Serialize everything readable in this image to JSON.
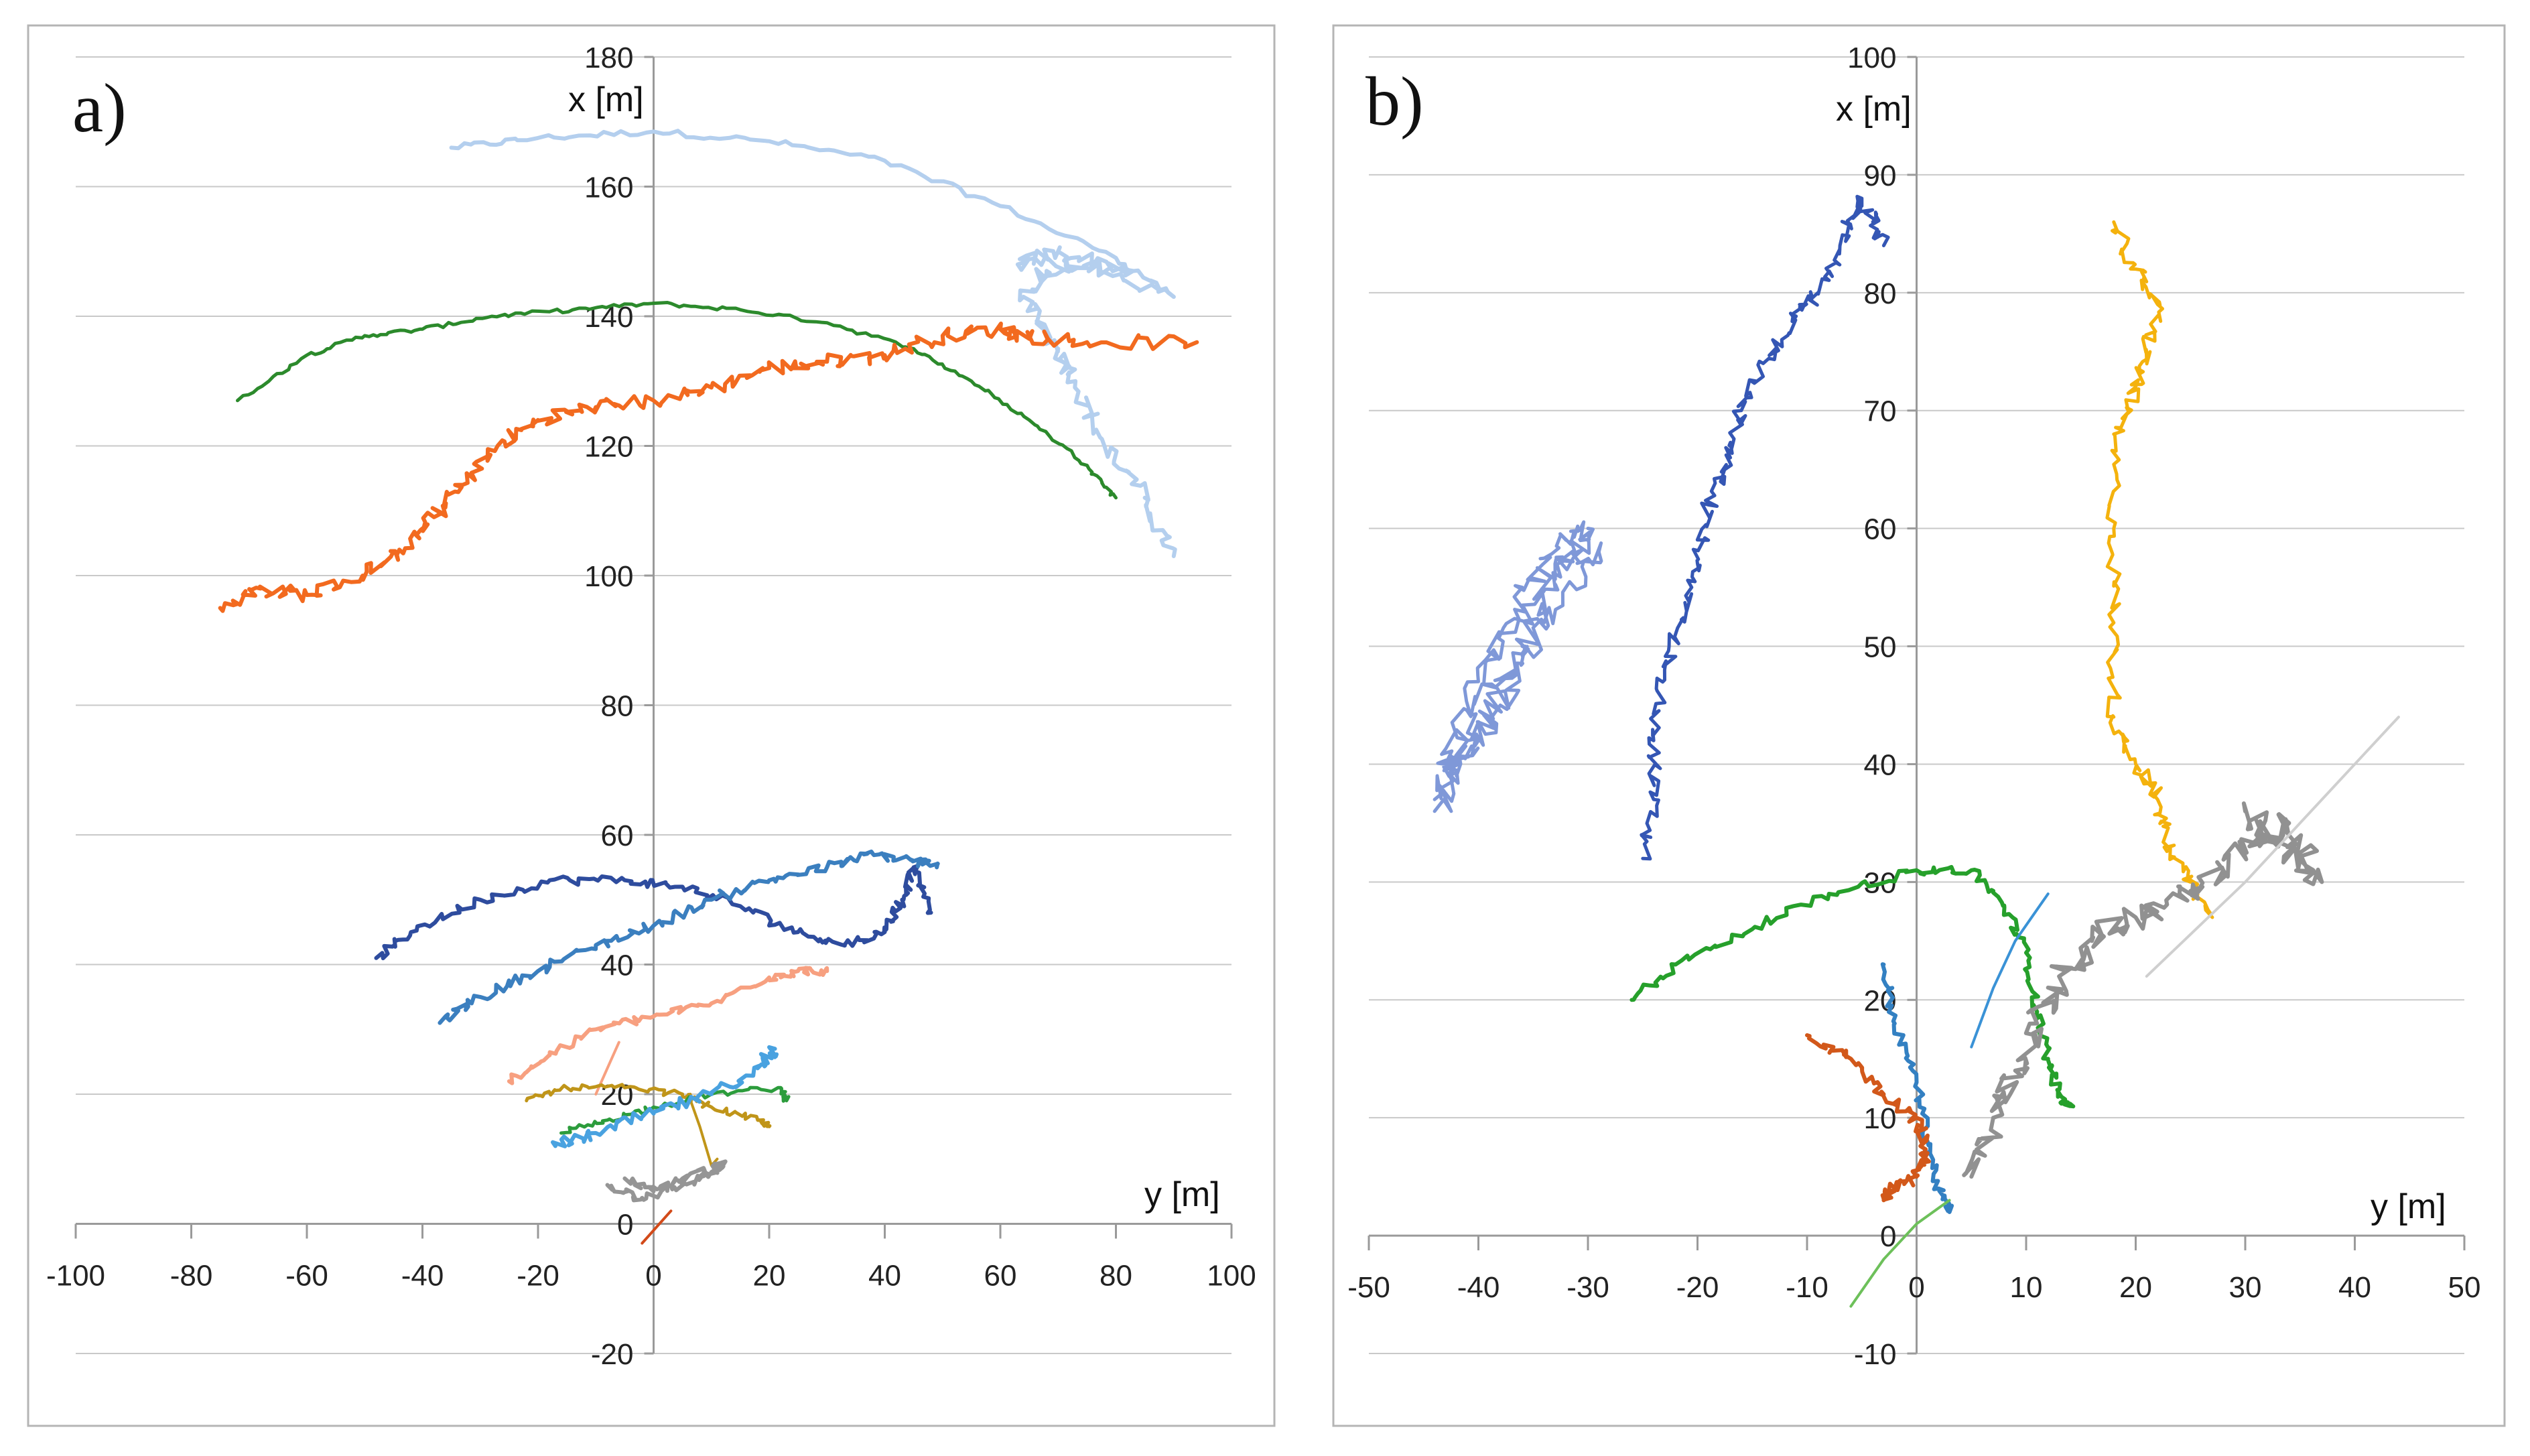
{
  "chart_data": [
    {
      "type": "line",
      "panel_label": "a)",
      "xlabel": "y [m]",
      "ylabel": "x [m]",
      "xlim": [
        -100,
        100
      ],
      "ylim": [
        -20,
        180
      ],
      "xticks": [
        -100,
        -80,
        -60,
        -40,
        -20,
        0,
        20,
        40,
        60,
        80,
        100
      ],
      "yticks": [
        -20,
        0,
        20,
        40,
        60,
        80,
        100,
        120,
        140,
        160,
        180
      ],
      "grid": "horizontal",
      "series": [
        {
          "name": "light-blue",
          "color": "#b4cfee",
          "width": 6,
          "jitter": 0.6,
          "points": [
            [
              -35,
              166
            ],
            [
              -20,
              167.5
            ],
            [
              0,
              168.5
            ],
            [
              20,
              167
            ],
            [
              40,
              164
            ],
            [
              60,
              157
            ],
            [
              80,
              149
            ],
            [
              90,
              143
            ]
          ]
        },
        {
          "name": "light-blue-2",
          "color": "#b4cfee",
          "width": 6,
          "jitter": 1.5,
          "points": [
            [
              90,
              143
            ],
            [
              75,
              148
            ],
            [
              63,
              148
            ],
            [
              70,
              150
            ],
            [
              83,
              147
            ],
            [
              68,
              147
            ],
            [
              64,
              143
            ],
            [
              70,
              135
            ],
            [
              73,
              130
            ],
            [
              78,
              120
            ],
            [
              85,
              112
            ],
            [
              90,
              103
            ]
          ]
        },
        {
          "name": "green",
          "color": "#2c8a2c",
          "width": 5,
          "jitter": 0.4,
          "points": [
            [
              -72,
              127
            ],
            [
              -60,
              134
            ],
            [
              -50,
              137
            ],
            [
              -40,
              138
            ],
            [
              -28,
              140
            ],
            [
              -14,
              141
            ],
            [
              0,
              142
            ],
            [
              15,
              141
            ],
            [
              30,
              139
            ],
            [
              45,
              135
            ],
            [
              55,
              130
            ],
            [
              65,
              124
            ],
            [
              75,
              117
            ],
            [
              80,
              112
            ]
          ]
        },
        {
          "name": "orange",
          "color": "#f26a1f",
          "width": 6,
          "jitter": 1.4,
          "points": [
            [
              -75,
              95
            ],
            [
              -68,
              98
            ],
            [
              -60,
              97
            ],
            [
              -50,
              100
            ],
            [
              -44,
              104
            ],
            [
              -38,
              109
            ],
            [
              -33,
              114
            ],
            [
              -27,
              120
            ],
            [
              -20,
              124
            ],
            [
              -10,
              126
            ],
            [
              0,
              127
            ],
            [
              10,
              129
            ],
            [
              20,
              132
            ],
            [
              30,
              133
            ],
            [
              40,
              134
            ],
            [
              50,
              137
            ],
            [
              60,
              138
            ],
            [
              65,
              137
            ],
            [
              75,
              136
            ],
            [
              94,
              136
            ]
          ]
        },
        {
          "name": "dark-blue",
          "color": "#2e4c9e",
          "width": 6,
          "jitter": 0.9,
          "points": [
            [
              -48,
              41
            ],
            [
              -42,
              45
            ],
            [
              -30,
              50
            ],
            [
              -18,
              53
            ],
            [
              -5,
              53
            ],
            [
              5,
              52
            ],
            [
              15,
              49
            ],
            [
              25,
              45
            ],
            [
              33,
              43
            ],
            [
              40,
              45
            ],
            [
              43,
              50
            ],
            [
              45,
              55
            ],
            [
              48,
              48
            ]
          ]
        },
        {
          "name": "mid-blue",
          "color": "#3b7fbf",
          "width": 6,
          "jitter": 1.0,
          "points": [
            [
              -37,
              31
            ],
            [
              -30,
              35
            ],
            [
              -20,
              39
            ],
            [
              -10,
              43
            ],
            [
              0,
              46
            ],
            [
              10,
              50
            ],
            [
              20,
              53
            ],
            [
              30,
              55
            ],
            [
              38,
              57
            ],
            [
              45,
              56
            ],
            [
              49,
              55
            ]
          ]
        },
        {
          "name": "salmon",
          "color": "#f7a080",
          "width": 6,
          "jitter": 0.8,
          "points": [
            [
              -25,
              22
            ],
            [
              -18,
              26
            ],
            [
              -10,
              30
            ],
            [
              0,
              32
            ],
            [
              10,
              34
            ],
            [
              20,
              38
            ],
            [
              25,
              39
            ],
            [
              30,
              39
            ]
          ]
        },
        {
          "name": "salmon-2",
          "color": "#f7a080",
          "width": 4,
          "jitter": 0,
          "points": [
            [
              -6,
              28
            ],
            [
              -8,
              24
            ],
            [
              -10,
              20
            ]
          ]
        },
        {
          "name": "gold",
          "color": "#c09519",
          "width": 5,
          "jitter": 0.6,
          "points": [
            [
              -22,
              19
            ],
            [
              -15,
              21
            ],
            [
              -5,
              21
            ],
            [
              5,
              20
            ],
            [
              10,
              18
            ],
            [
              18,
              16
            ],
            [
              20,
              15
            ]
          ]
        },
        {
          "name": "gold-2",
          "color": "#c09519",
          "width": 4,
          "jitter": 0,
          "points": [
            [
              6,
              20
            ],
            [
              8,
              15
            ],
            [
              10,
              9
            ],
            [
              11,
              10
            ]
          ]
        },
        {
          "name": "green-small",
          "color": "#2c9c3c",
          "width": 5,
          "jitter": 0.6,
          "points": [
            [
              -16,
              14
            ],
            [
              -8,
              16
            ],
            [
              0,
              18
            ],
            [
              10,
              20
            ],
            [
              22,
              21
            ],
            [
              23,
              19
            ]
          ]
        },
        {
          "name": "sky-blue",
          "color": "#49a2e0",
          "width": 6,
          "jitter": 1.2,
          "points": [
            [
              -17,
              12
            ],
            [
              -10,
              14
            ],
            [
              0,
              17
            ],
            [
              10,
              20
            ],
            [
              18,
              24
            ],
            [
              21,
              27
            ]
          ]
        },
        {
          "name": "gray",
          "color": "#959595",
          "width": 6,
          "jitter": 1.0,
          "points": [
            [
              -8,
              6
            ],
            [
              -2,
              4
            ],
            [
              5,
              6
            ],
            [
              10,
              8
            ],
            [
              12,
              9
            ],
            [
              5,
              7
            ],
            [
              0,
              5
            ],
            [
              -5,
              7
            ]
          ]
        },
        {
          "name": "red-small",
          "color": "#d24a19",
          "width": 4,
          "jitter": 0,
          "points": [
            [
              -2,
              -3
            ],
            [
              2,
              1
            ],
            [
              3,
              2
            ]
          ]
        }
      ]
    },
    {
      "type": "line",
      "panel_label": "b)",
      "xlabel": "y [m]",
      "ylabel": "x [m]",
      "xlim": [
        -50,
        50
      ],
      "ylim": [
        -10,
        100
      ],
      "xticks": [
        -50,
        -40,
        -30,
        -20,
        -10,
        0,
        10,
        20,
        30,
        40,
        50
      ],
      "yticks": [
        -10,
        0,
        10,
        20,
        30,
        40,
        50,
        60,
        70,
        80,
        90,
        100
      ],
      "grid": "horizontal",
      "series": [
        {
          "name": "periwinkle",
          "color": "#7f98d8",
          "width": 5,
          "jitter": 1.2,
          "points": [
            [
              -44,
              36
            ],
            [
              -40,
              42
            ],
            [
              -38,
              46
            ],
            [
              -36,
              50
            ],
            [
              -33,
              55
            ],
            [
              -30,
              60
            ],
            [
              -32,
              59
            ],
            [
              -36,
              55
            ],
            [
              -40,
              47
            ],
            [
              -43,
              40
            ],
            [
              -42,
              39
            ],
            [
              -38,
              45
            ],
            [
              -34,
              52
            ],
            [
              -29,
              58
            ],
            [
              -33,
              57
            ],
            [
              -38,
              49
            ],
            [
              -41,
              42
            ],
            [
              -44,
              37
            ]
          ]
        },
        {
          "name": "royal-blue",
          "color": "#3456b4",
          "width": 5,
          "jitter": 0.8,
          "points": [
            [
              -25,
              32
            ],
            [
              -24,
              37
            ],
            [
              -24,
              42
            ],
            [
              -23,
              48
            ],
            [
              -21,
              53
            ],
            [
              -20,
              57
            ],
            [
              -19,
              62
            ],
            [
              -17,
              66
            ],
            [
              -16,
              70
            ],
            [
              -14,
              74
            ],
            [
              -11,
              78
            ],
            [
              -9,
              80
            ],
            [
              -7,
              84
            ],
            [
              -5,
              88
            ],
            [
              -4,
              86
            ],
            [
              -3,
              84
            ]
          ]
        },
        {
          "name": "amber",
          "color": "#f4b20d",
          "width": 5,
          "jitter": 0.8,
          "points": [
            [
              18,
              86
            ],
            [
              20,
              82
            ],
            [
              22,
              79
            ],
            [
              21,
              75
            ],
            [
              20,
              72
            ],
            [
              18,
              68
            ],
            [
              18,
              60
            ],
            [
              18,
              52
            ],
            [
              18,
              44
            ],
            [
              20,
              40
            ],
            [
              22,
              37
            ],
            [
              23,
              33
            ],
            [
              25,
              30
            ],
            [
              27,
              27
            ]
          ]
        },
        {
          "name": "green",
          "color": "#26a02b",
          "width": 6,
          "jitter": 0.5,
          "points": [
            [
              -26,
              20
            ],
            [
              -22,
              23
            ],
            [
              -15,
              26
            ],
            [
              -8,
              29
            ],
            [
              0,
              31
            ],
            [
              5,
              31
            ],
            [
              8,
              28
            ],
            [
              10,
              24
            ],
            [
              11,
              19
            ],
            [
              12,
              15
            ],
            [
              13,
              12
            ],
            [
              14,
              11
            ]
          ]
        },
        {
          "name": "gray",
          "color": "#919191",
          "width": 6,
          "jitter": 1.4,
          "points": [
            [
              5,
              5
            ],
            [
              7,
              10
            ],
            [
              9,
              14
            ],
            [
              11,
              18
            ],
            [
              13,
              22
            ],
            [
              16,
              25
            ],
            [
              20,
              27
            ],
            [
              24,
              29
            ],
            [
              28,
              31
            ],
            [
              31,
              34
            ],
            [
              34,
              35
            ],
            [
              37,
              30
            ],
            [
              33,
              33
            ],
            [
              30,
              36
            ]
          ]
        },
        {
          "name": "light-gray",
          "color": "#cfcfcf",
          "width": 4,
          "jitter": 0,
          "points": [
            [
              21,
              22
            ],
            [
              30,
              30
            ],
            [
              44,
              44
            ]
          ]
        },
        {
          "name": "steel-blue",
          "color": "#3380c2",
          "width": 6,
          "jitter": 0.5,
          "points": [
            [
              -3,
              23
            ],
            [
              -2,
              18
            ],
            [
              0,
              13
            ],
            [
              1,
              8
            ],
            [
              2,
              4
            ],
            [
              3,
              2
            ]
          ]
        },
        {
          "name": "sky-blue",
          "color": "#3a92d6",
          "width": 4,
          "jitter": 0,
          "points": [
            [
              5,
              16
            ],
            [
              7,
              21
            ],
            [
              9,
              25
            ],
            [
              12,
              29
            ]
          ]
        },
        {
          "name": "rust",
          "color": "#d2581a",
          "width": 6,
          "jitter": 0.6,
          "points": [
            [
              -10,
              17
            ],
            [
              -6,
              15
            ],
            [
              -3,
              12
            ],
            [
              0,
              10
            ],
            [
              1,
              7
            ],
            [
              0,
              5
            ],
            [
              -2,
              4
            ],
            [
              -3,
              3
            ]
          ]
        },
        {
          "name": "lime-green",
          "color": "#6dc05a",
          "width": 4,
          "jitter": 0,
          "points": [
            [
              -6,
              -6
            ],
            [
              -3,
              -2
            ],
            [
              0,
              1
            ],
            [
              3,
              3
            ]
          ]
        }
      ]
    }
  ]
}
